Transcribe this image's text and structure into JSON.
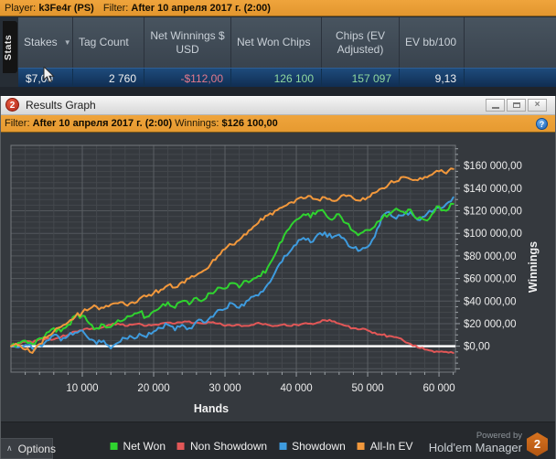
{
  "colors": {
    "accent_orange": "#efa43c",
    "row_selected": "#16385f",
    "negative": "#e2798c",
    "positive": "#8fd89f",
    "badge": "#d8731f"
  },
  "top_bar": {
    "player_label": "Player:",
    "player_name": "k3Fe4r (PS)",
    "filter_label": "Filter:",
    "filter_value": "After 10 апреля 2017 г. (2:00)"
  },
  "stats_panel": {
    "tab_label": "Stats",
    "sort_arrow": "▼",
    "columns": [
      "Stakes",
      "Tag Count",
      "Net Winnings $ USD",
      "Net Won Chips",
      "Chips (EV Adjusted)",
      "EV bb/100"
    ],
    "row": [
      "$7,00",
      "2 760",
      "-$112,00",
      "126 100",
      "157 097",
      "9,13"
    ]
  },
  "graph_window": {
    "icon_text": "2",
    "title": "Results Graph",
    "close_glyph": "×"
  },
  "filter_bar": {
    "filter_label": "Filter:",
    "filter_value": "After 10 апреля 2017 г. (2:00)",
    "winnings_label": "Winnings:",
    "winnings_value": "$126 100,00",
    "help_glyph": "?"
  },
  "chart_data": {
    "type": "line",
    "xlabel": "Hands",
    "ylabel": "Winnings",
    "xlim": [
      0,
      62300
    ],
    "ylim": [
      -23000,
      178000
    ],
    "x_step": 1000,
    "grid": true,
    "legend_position": "bottom",
    "x_ticks": [
      10000,
      20000,
      30000,
      40000,
      50000,
      60000
    ],
    "x_tick_labels": [
      "10 000",
      "20 000",
      "30 000",
      "40 000",
      "50 000",
      "60 000"
    ],
    "y_ticks": [
      0,
      20000,
      40000,
      60000,
      80000,
      100000,
      120000,
      140000,
      160000
    ],
    "y_tick_labels": [
      "$0,00",
      "$20 000,00",
      "$40 000,00",
      "$60 000,00",
      "$80 000,00",
      "$100 000,00",
      "$120 000,00",
      "$140 000,00",
      "$160 000,00"
    ],
    "series": [
      {
        "name": "Net Won",
        "color": "#2fd32f",
        "final_value": 126100,
        "values": [
          0,
          3000,
          5000,
          2000,
          7000,
          12000,
          16000,
          13000,
          19000,
          27000,
          27000,
          20000,
          16000,
          19000,
          17000,
          23000,
          24000,
          27000,
          30000,
          26000,
          31000,
          35000,
          39000,
          34000,
          40000,
          37000,
          43000,
          41000,
          47000,
          52000,
          51000,
          56000,
          52000,
          58000,
          60000,
          62000,
          70000,
          81000,
          93000,
          104000,
          112000,
          117000,
          114000,
          120000,
          118000,
          112000,
          117000,
          109000,
          102000,
          100000,
          103000,
          106000,
          113000,
          117000,
          122000,
          119000,
          121000,
          113000,
          112000,
          117000,
          124000,
          120000,
          126100
        ]
      },
      {
        "name": "Non Showdown",
        "color": "#e25757",
        "final_value": -6000,
        "values": [
          0,
          2000,
          4000,
          3000,
          6000,
          7000,
          6000,
          8000,
          10000,
          13000,
          14000,
          15000,
          16000,
          17000,
          19000,
          20000,
          18000,
          19000,
          20000,
          18000,
          19000,
          20000,
          21000,
          20000,
          21000,
          22000,
          21000,
          20000,
          21000,
          20000,
          18000,
          18000,
          19000,
          18000,
          19000,
          20000,
          19000,
          18000,
          19000,
          18000,
          19000,
          20000,
          20000,
          21000,
          23000,
          22000,
          20000,
          18000,
          16000,
          15000,
          14000,
          12000,
          10000,
          9000,
          8000,
          5000,
          2000,
          -1000,
          -3000,
          -4000,
          -5000,
          -5000,
          -6000
        ]
      },
      {
        "name": "Showdown",
        "color": "#3e9bde",
        "final_value": 132000,
        "values": [
          0,
          -1000,
          1000,
          -2000,
          1000,
          5000,
          10000,
          5000,
          9000,
          12000,
          14000,
          6000,
          2000,
          5000,
          -2000,
          3000,
          7000,
          8000,
          11000,
          8000,
          13000,
          16000,
          19000,
          14000,
          19000,
          16000,
          22000,
          21000,
          26000,
          32000,
          33000,
          38000,
          34000,
          40000,
          44000,
          48000,
          55000,
          65000,
          75000,
          83000,
          90000,
          96000,
          92000,
          99000,
          101000,
          96000,
          99000,
          93000,
          87000,
          85000,
          88000,
          97000,
          115000,
          119000,
          113000,
          116000,
          119000,
          112000,
          115000,
          119000,
          123000,
          126000,
          132000
        ]
      },
      {
        "name": "All-In EV",
        "color": "#f2983c",
        "final_value": 157097,
        "values": [
          0,
          1000,
          -3000,
          -6000,
          2000,
          8000,
          13000,
          17000,
          21000,
          26000,
          30000,
          33000,
          35000,
          34000,
          37000,
          38000,
          37000,
          39000,
          42000,
          44000,
          47000,
          50000,
          54000,
          52000,
          57000,
          60000,
          63000,
          67000,
          73000,
          80000,
          86000,
          90000,
          94000,
          99000,
          106000,
          113000,
          116000,
          120000,
          123000,
          127000,
          130000,
          131000,
          133000,
          130000,
          132000,
          129000,
          131000,
          133000,
          131000,
          129000,
          132000,
          136000,
          140000,
          144000,
          146000,
          150000,
          148000,
          147000,
          150000,
          152000,
          155000,
          153000,
          157097
        ]
      }
    ]
  },
  "bottom_bar": {
    "options_caret": "∧",
    "options_label": "Options",
    "powered_by": "Powered by",
    "brand_name": "Hold'em Manager",
    "badge_text": "2"
  }
}
